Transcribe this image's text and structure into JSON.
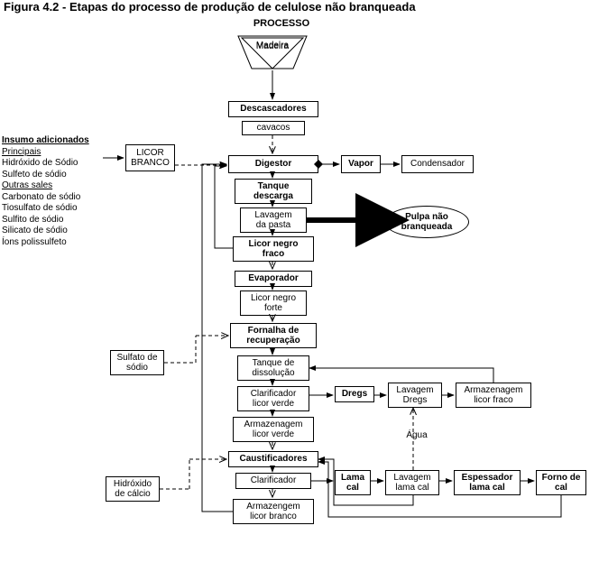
{
  "figure_title": "Figura 4.2 - Etapas do processo de produção de celulose não branqueada",
  "header": "PROCESSO",
  "input_triangle": "Madeira",
  "insumos": {
    "title": "Insumo adicionados",
    "principais_label": "Principais",
    "principais": [
      "Hidróxido de Sódio",
      "Sulfeto de sódio"
    ],
    "outras_label": "Outras sales",
    "outras": [
      "Carbonato de sódio",
      "Tiosulfato de sódio",
      "Sulfito de sódio",
      "Silicato de sódio",
      "Íons polissulfeto"
    ]
  },
  "aux_boxes": {
    "licor_branco": "LICOR\nBRANCO",
    "sulfato": "Sulfato de\nsódio",
    "hidroxido": "Hidróxido\nde cálcio"
  },
  "main_column": {
    "descascadores": "Descascadores",
    "cavacos": "cavacos",
    "digestor": "Digestor",
    "tanque_descarga": "Tanque\ndescarga",
    "lavagem_pasta": "Lavagem\nda pasta",
    "licor_negro_fraco": "Licor negro\nfraco",
    "evaporador": "Evaporador",
    "licor_negro_forte": "Licor negro\nforte",
    "fornalha": "Fornalha de\nrecuperação",
    "tanque_dissolucao": "Tanque de\ndissolução",
    "clarificador_verde": "Clarificador\nlicor verde",
    "armazenagem_verde": "Armazenagem\nlicor verde",
    "caustificadores": "Caustificadores",
    "clarificador": "Clarificador",
    "armazenagem_branco": "Armazengem\nlicor branco"
  },
  "right_side": {
    "vapor": "Vapor",
    "condensador": "Condensador",
    "pulpa": "Pulpa não\nbranqueada",
    "dregs": "Dregs",
    "lavagem_dregs": "Lavagem\nDregs",
    "armazenagem_fraco": "Armazenagem\nlicor fraco",
    "agua": "Água",
    "lama_cal": "Lama\ncal",
    "lavagem_lama": "Lavagem\nlama cal",
    "espessador": "Espessador\nlama cal",
    "forno_cal": "Forno de\ncal"
  },
  "style": {
    "font": "Arial",
    "bg": "#ffffff",
    "line": "#000000",
    "box_border_w": 1,
    "bold_border_w": 1
  }
}
